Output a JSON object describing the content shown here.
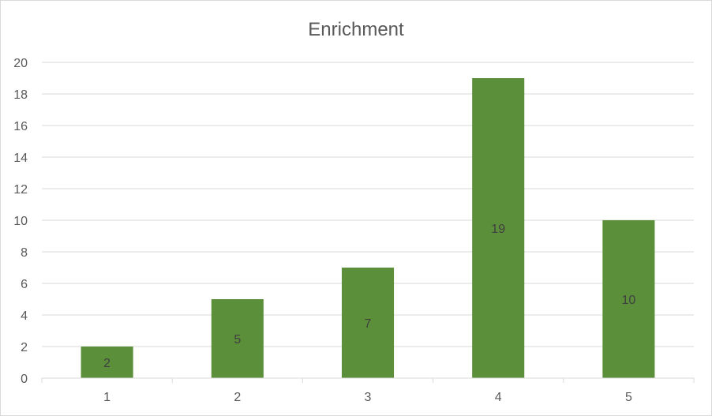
{
  "chart_data": {
    "type": "bar",
    "title": "Enrichment",
    "xlabel": "",
    "ylabel": "",
    "categories": [
      "1",
      "2",
      "3",
      "4",
      "5"
    ],
    "values": [
      2,
      5,
      7,
      19,
      10
    ],
    "ylim": [
      0,
      20
    ],
    "ytick_step": 2,
    "grid": true,
    "bar_color": "#5b8f3a",
    "data_labels": true
  }
}
